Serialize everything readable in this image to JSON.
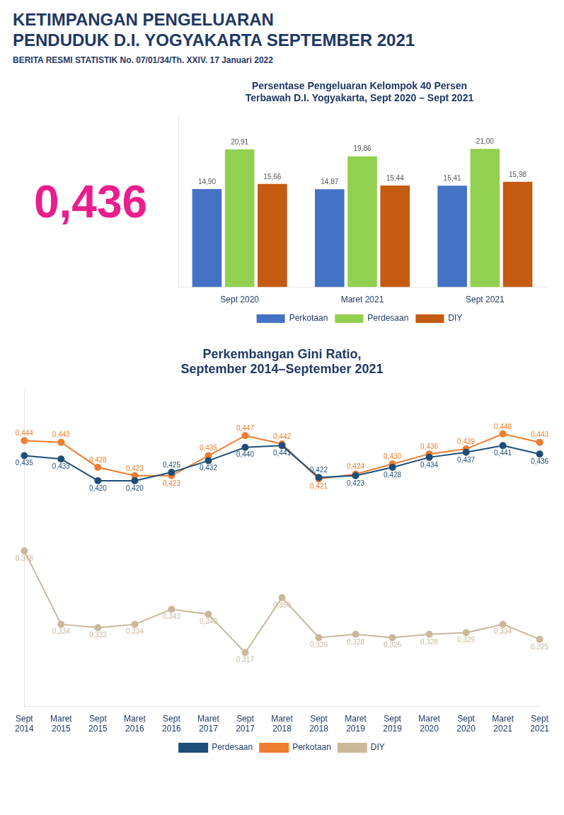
{
  "title": "KETIMPANGAN PENGELUARAN\nPENDUDUK D.I. YOGYAKARTA SEPTEMBER 2021",
  "subtitle": "BERITA RESMI STATISTIK No. 07/01/34/Th. XXIV. 17 Januari 2022",
  "annotations": [
    "0,436"
  ],
  "chart_data": [
    {
      "type": "bar",
      "title": "Persentase Pengeluaran Kelompok 40 Persen\nTerbawah D.I. Yogyakarta, Sept 2020 – Sept 2021",
      "categories": [
        "Sept 2020",
        "Maret 2021",
        "Sept 2021"
      ],
      "series": [
        {
          "name": "Perkotaan",
          "color": "#4472C4",
          "values": [
            14.9,
            14.87,
            15.41
          ],
          "value_labels": [
            "14,90",
            "14,87",
            "15,41"
          ]
        },
        {
          "name": "Perdesaan",
          "color": "#92D050",
          "values": [
            20.91,
            19.86,
            21.0
          ],
          "value_labels": [
            "20,91",
            "19,86",
            "21,00"
          ]
        },
        {
          "name": "DIY",
          "color": "#C55A11",
          "values": [
            15.66,
            15.44,
            15.98
          ],
          "value_labels": [
            "15,66",
            "15,44",
            "15,98"
          ]
        }
      ],
      "ylim": [
        0,
        26
      ],
      "grid": false,
      "legend": "bottom",
      "data_labels": true,
      "tick_labels": "x"
    },
    {
      "type": "line",
      "title": "Perkembangan Gini Ratio,\nSeptember 2014–September 2021",
      "categories": [
        "Sept\n2014",
        "Maret\n2015",
        "Sept\n2015",
        "Maret\n2016",
        "Sept\n2016",
        "Maret\n2017",
        "Sept\n2017",
        "Maret\n2018",
        "Sept\n2018",
        "Maret\n2019",
        "Sept\n2019",
        "Maret\n2020",
        "Sept\n2020",
        "Maret\n2021",
        "Sept\n2021"
      ],
      "series": [
        {
          "name": "Perdesaan",
          "color": "#1F4E79",
          "values": [
            0.435,
            0.433,
            0.42,
            0.42,
            0.425,
            0.432,
            0.44,
            0.441,
            0.422,
            0.423,
            0.428,
            0.434,
            0.437,
            0.441,
            0.436
          ],
          "value_labels": [
            "0,435",
            "0,433",
            "0,420",
            "0,420",
            "0,425",
            "0,432",
            "0,440",
            "0,441",
            "0,422",
            "0,423",
            "0,428",
            "0,434",
            "0,437",
            "0,441",
            "0,436"
          ]
        },
        {
          "name": "Perkotaan",
          "color": "#ED7D31",
          "values": [
            0.444,
            0.443,
            0.428,
            0.423,
            0.423,
            0.435,
            0.447,
            0.442,
            0.421,
            0.424,
            0.43,
            0.436,
            0.439,
            0.448,
            0.443
          ],
          "value_labels": [
            "0,444",
            "0,443",
            "0,428",
            "0,423",
            "0,423",
            "0,435",
            "0,447",
            "0,442",
            "0,421",
            "0,424",
            "0,430",
            "0,436",
            "0,439",
            "0,448",
            "0,443"
          ]
        },
        {
          "name": "DIY",
          "color": "#C9B89A",
          "values": [
            0.378,
            0.334,
            0.332,
            0.334,
            0.343,
            0.34,
            0.317,
            0.35,
            0.326,
            0.328,
            0.326,
            0.328,
            0.329,
            0.334,
            0.325
          ],
          "value_labels": [
            "0,378",
            "0,334",
            "0,332",
            "0,334",
            "0,343",
            "0,340",
            "0,317",
            "0,350",
            "0,326",
            "0,328",
            "0,326",
            "0,328",
            "0,329",
            "0,334",
            "0,325"
          ]
        }
      ],
      "ylim": [
        0.285,
        0.475
      ],
      "grid": false,
      "legend": "bottom",
      "data_labels": true,
      "tick_labels": "x"
    }
  ]
}
